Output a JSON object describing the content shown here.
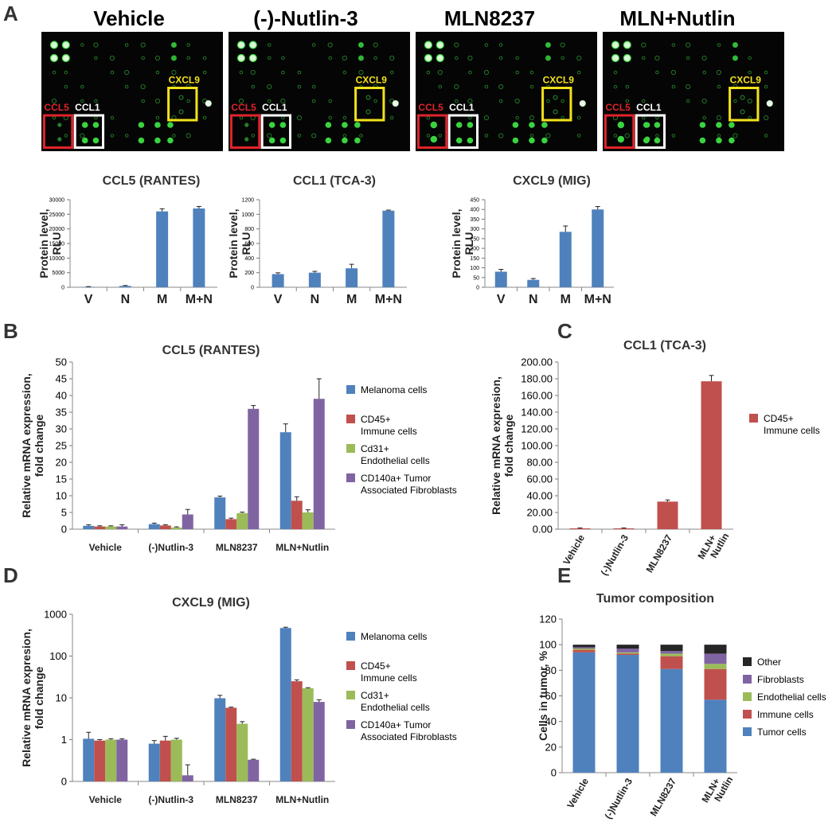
{
  "panel_labels": {
    "a": "A",
    "b": "B",
    "c": "C",
    "d": "D",
    "e": "E"
  },
  "blots": {
    "titles": [
      "Vehicle",
      "(-)-Nutlin-3",
      "MLN8237",
      "MLN+Nutlin"
    ],
    "box_labels": {
      "ccl5": "CCL5",
      "ccl1": "CCL1",
      "cxcl9": "CXCL9"
    },
    "box_colors": {
      "ccl5": "#e0232a",
      "ccl1": "#ffffff",
      "cxcl9": "#f2e21a"
    },
    "spot_color": "#39d43f"
  },
  "colors": {
    "blue": "#4f81bd",
    "red": "#c0504d",
    "green": "#9bbb59",
    "purple": "#8064a2",
    "black": "#262626"
  },
  "chart_data": [
    {
      "id": "a1",
      "type": "bar",
      "title": "CCL5 (RANTES)",
      "ylabel": [
        "Protein level,",
        "RLU"
      ],
      "categories": [
        "V",
        "N",
        "M",
        "M+N"
      ],
      "series": [
        {
          "name": "Protein",
          "values": [
            150,
            450,
            26000,
            27000
          ],
          "errors": [
            80,
            150,
            900,
            700
          ]
        }
      ],
      "ylim": [
        0,
        30000
      ],
      "yticks": [
        0,
        5000,
        10000,
        15000,
        20000,
        25000,
        30000
      ],
      "yticklabels": [
        "0",
        "5000",
        "10000",
        "15000",
        "20000",
        "25000",
        "30000"
      ]
    },
    {
      "id": "a2",
      "type": "bar",
      "title": "CCL1 (TCA-3)",
      "ylabel": [
        "Protein level,",
        "RLU"
      ],
      "categories": [
        "V",
        "N",
        "M",
        "M+N"
      ],
      "series": [
        {
          "name": "Protein",
          "values": [
            180,
            200,
            260,
            1050
          ],
          "errors": [
            18,
            18,
            55,
            8
          ]
        }
      ],
      "ylim": [
        0,
        1200
      ],
      "yticks": [
        0,
        200,
        400,
        600,
        800,
        1000,
        1200
      ],
      "yticklabels": [
        "0",
        "200",
        "400",
        "600",
        "800",
        "1000",
        "1200"
      ]
    },
    {
      "id": "a3",
      "type": "bar",
      "title": "CXCL9 (MIG)",
      "ylabel": [
        "Protein level,",
        "RLU"
      ],
      "categories": [
        "V",
        "N",
        "M",
        "M+N"
      ],
      "series": [
        {
          "name": "Protein",
          "values": [
            80,
            38,
            285,
            400
          ],
          "errors": [
            12,
            7,
            30,
            15
          ]
        }
      ],
      "ylim": [
        0,
        450
      ],
      "yticks": [
        0,
        50,
        100,
        150,
        200,
        250,
        300,
        350,
        400,
        450
      ],
      "yticklabels": [
        "0",
        "50",
        "100",
        "150",
        "200",
        "250",
        "300",
        "350",
        "400",
        "450"
      ]
    },
    {
      "id": "b",
      "type": "bar",
      "title": "CCL5 (RANTES)",
      "ylabel": [
        "Relative mRNA expression,",
        "fold change"
      ],
      "categories": [
        "Vehicle",
        "(-)Nutlin-3",
        "MLN8237",
        "MLN+Nutlin"
      ],
      "series": [
        {
          "name": "Melanoma cells",
          "legend": [
            "Melanoma cells"
          ],
          "color_key": "blue",
          "values": [
            1.0,
            1.5,
            9.5,
            29.0
          ],
          "errors": [
            0.3,
            0.3,
            0.4,
            2.5
          ]
        },
        {
          "name": "CD45+ Immune cells",
          "legend": [
            "CD45+",
            "Immune cells"
          ],
          "color_key": "red",
          "values": [
            0.8,
            1.1,
            3.0,
            8.5
          ],
          "errors": [
            0.2,
            0.2,
            0.3,
            1.2
          ]
        },
        {
          "name": "Cd31+ Endothelial cells",
          "legend": [
            "Cd31+",
            "Endothelial cells"
          ],
          "color_key": "green",
          "values": [
            0.8,
            0.5,
            4.8,
            5.0
          ],
          "errors": [
            0.2,
            0.2,
            0.3,
            0.8
          ]
        },
        {
          "name": "CD140a+ Tumor Associated Fibroblasts",
          "legend": [
            "CD140a+ Tumor",
            "Associated Fibroblasts"
          ],
          "color_key": "purple",
          "values": [
            0.8,
            4.4,
            36.0,
            39.0
          ],
          "errors": [
            0.5,
            1.5,
            1.0,
            6.0
          ]
        }
      ],
      "ylim": [
        0,
        50
      ],
      "yticks": [
        0,
        5,
        10,
        15,
        20,
        25,
        30,
        35,
        40,
        45,
        50
      ],
      "yticklabels": [
        "0",
        "5",
        "10",
        "15",
        "20",
        "25",
        "30",
        "35",
        "40",
        "45",
        "50"
      ]
    },
    {
      "id": "c",
      "type": "bar",
      "title": "CCL1 (TCA-3)",
      "ylabel": [
        "Relative mRNA expresion,",
        "fold change"
      ],
      "categories": [
        "Vehicle",
        "(-)Nutlin-3",
        "MLN8237",
        "MLN+ Nutlin"
      ],
      "series": [
        {
          "name": "CD45+ Immune cells",
          "legend": [
            "CD45+",
            "Immune cells"
          ],
          "color_key": "red",
          "values": [
            1.0,
            1.0,
            33.0,
            177.0
          ],
          "errors": [
            0.5,
            0.5,
            2.0,
            7.0
          ]
        }
      ],
      "ylim": [
        0,
        200
      ],
      "yticks": [
        0,
        20,
        40,
        60,
        80,
        100,
        120,
        140,
        160,
        180,
        200
      ],
      "yticklabels": [
        "0.00",
        "20.00",
        "40.00",
        "60.00",
        "80.00",
        "100.00",
        "120.00",
        "140.00",
        "160.00",
        "180.00",
        "200.00"
      ]
    },
    {
      "id": "d",
      "type": "bar",
      "title": "CXCL9 (MIG)",
      "yscale": "log",
      "ylabel": [
        "Relative mRNA expresion,",
        "fold change"
      ],
      "categories": [
        "Vehicle",
        "(-)Nutlin-3",
        "MLN8237",
        "MLN+Nutlin"
      ],
      "series": [
        {
          "name": "Melanoma cells",
          "legend": [
            "Melanoma cells"
          ],
          "color_key": "blue",
          "values": [
            1.05,
            0.8,
            9.8,
            470.0
          ],
          "errors_hi": [
            1.5,
            0.95,
            11.5,
            490.0
          ]
        },
        {
          "name": "CD45+ Immune cells",
          "legend": [
            "CD45+",
            "Immune cells"
          ],
          "color_key": "red",
          "values": [
            0.95,
            0.95,
            5.8,
            25.0
          ],
          "errors_hi": [
            1.0,
            1.2,
            6.0,
            27.0
          ]
        },
        {
          "name": "Cd31+ Endothelial cells",
          "legend": [
            "Cd31+",
            "Endothelial cells"
          ],
          "color_key": "green",
          "values": [
            1.0,
            1.0,
            2.4,
            17.0
          ],
          "errors_hi": [
            1.05,
            1.08,
            2.7,
            17.5
          ]
        },
        {
          "name": "CD140a+ Tumor Associated Fibroblasts",
          "legend": [
            "CD140a+ Tumor",
            "Associated Fibroblasts"
          ],
          "color_key": "purple",
          "values": [
            1.0,
            0.14,
            0.33,
            8.0
          ],
          "errors_hi": [
            1.05,
            0.25,
            0.34,
            9.0
          ]
        }
      ],
      "ylim": [
        0.1,
        1000
      ],
      "yticks": [
        0.1,
        1,
        10,
        100,
        1000
      ],
      "yticklabels": [
        "0",
        "1",
        "10",
        "100",
        "1000"
      ]
    },
    {
      "id": "e",
      "type": "bar",
      "stacked": true,
      "title": "Tumor composition",
      "ylabel": [
        "Cells in tumor, %"
      ],
      "categories": [
        "Vehicle",
        "(-)Nutlin-3",
        "MLN8237",
        "MLN+ Nutlin"
      ],
      "series": [
        {
          "name": "Tumor cells",
          "color_key": "blue",
          "values": [
            94,
            92,
            81,
            57
          ]
        },
        {
          "name": "Immune cells",
          "color_key": "red",
          "values": [
            2,
            1,
            10,
            24
          ]
        },
        {
          "name": "Endothelial cells",
          "color_key": "green",
          "values": [
            1,
            1,
            2,
            4
          ]
        },
        {
          "name": "Fibroblasts",
          "color_key": "purple",
          "values": [
            1,
            3,
            2,
            8
          ]
        },
        {
          "name": "Other",
          "color_key": "black",
          "values": [
            2,
            3,
            5,
            7
          ]
        }
      ],
      "legend_order": [
        "Other",
        "Fibroblasts",
        "Endothelial cells",
        "Immune cells",
        "Tumor cells"
      ],
      "ylim": [
        0,
        120
      ],
      "yticks": [
        0,
        20,
        40,
        60,
        80,
        100,
        120
      ],
      "yticklabels": [
        "0",
        "20",
        "40",
        "60",
        "80",
        "100",
        "120"
      ]
    }
  ]
}
